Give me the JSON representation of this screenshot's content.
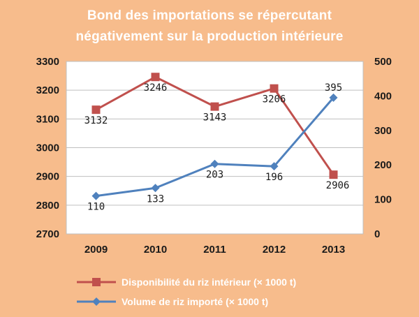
{
  "chart_data": {
    "type": "line",
    "title_line1": "Bond des importations se répercutant",
    "title_line2": "négativement sur la production intérieure",
    "categories": [
      "2009",
      "2010",
      "2011",
      "2012",
      "2013"
    ],
    "left_axis": {
      "min": 2700,
      "max": 3300,
      "ticks": [
        "2700",
        "2800",
        "2900",
        "3000",
        "3100",
        "3200",
        "3300"
      ]
    },
    "right_axis": {
      "min": 0,
      "max": 500,
      "ticks": [
        "0",
        "100",
        "200",
        "300",
        "400",
        "500"
      ]
    },
    "series": [
      {
        "name": "Disponibilité du riz intérieur (× 1000 t)",
        "axis": "left",
        "color": "#c0504d",
        "marker": "square",
        "values": [
          3132,
          3246,
          3143,
          3206,
          2906
        ],
        "labels": [
          "3132",
          "3246",
          "3143",
          "3206",
          "2906"
        ]
      },
      {
        "name": "Volume de riz importé (× 1000 t)",
        "axis": "right",
        "color": "#4f81bd",
        "marker": "diamond",
        "values": [
          110,
          133,
          203,
          196,
          395
        ],
        "labels": [
          "110",
          "133",
          "203",
          "196",
          "395"
        ]
      }
    ],
    "grid": true,
    "legend_position": "bottom",
    "plot_background": "#ffffff",
    "page_background": "#f7bc8c"
  }
}
